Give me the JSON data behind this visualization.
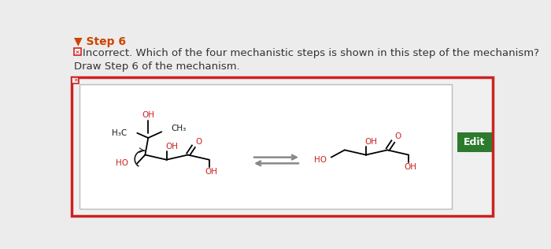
{
  "bg_color": "#ececec",
  "title_text": "▼ Step 6",
  "title_color": "#cc4400",
  "title_fontsize": 10,
  "incorrect_text": "Incorrect. Which of the four mechanistic steps is shown in this step of the mechanism?",
  "incorrect_fontsize": 9.5,
  "draw_text": "Draw Step 6 of the mechanism.",
  "draw_fontsize": 9.5,
  "outer_border_color": "#cc2222",
  "edit_btn_color": "#2d7a2d",
  "edit_btn_text": "Edit",
  "edit_btn_text_color": "#ffffff",
  "x_icon_color": "#cc2222",
  "col_struct": "#1a1a1a",
  "col_red": "#cc2222"
}
